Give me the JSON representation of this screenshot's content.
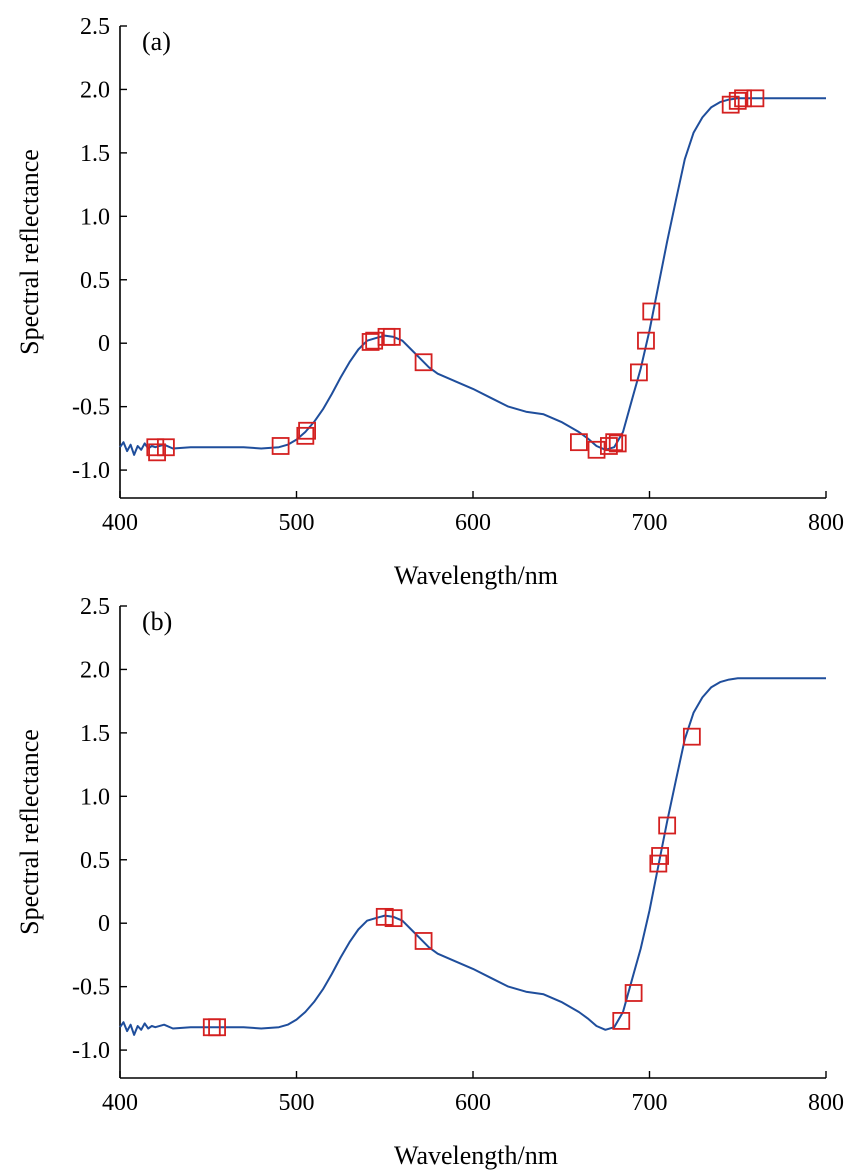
{
  "colors": {
    "line": "#1f4e9c",
    "marker": "#d42020",
    "axis": "#000000"
  },
  "chart_data": [
    {
      "type": "line",
      "panel_label": "(a)",
      "xlabel": "Wavelength/nm",
      "ylabel": "Spectral reflectance",
      "xlim": [
        400,
        800
      ],
      "ylim": [
        -1.22,
        2.5
      ],
      "xticks": [
        400,
        500,
        600,
        700,
        800
      ],
      "xtick_labels": [
        "400",
        "500",
        "600",
        "700",
        "800"
      ],
      "yticks": [
        -1.0,
        -0.5,
        0,
        0.5,
        1.0,
        1.5,
        2.0,
        2.5
      ],
      "ytick_labels": [
        "-1.0",
        "-0.5",
        "0",
        "0.5",
        "1.0",
        "1.5",
        "2.0",
        "2.5"
      ],
      "grid": false,
      "series": [
        {
          "x": [
            400,
            402,
            404,
            406,
            408,
            410,
            412,
            414,
            416,
            418,
            420,
            425,
            430,
            440,
            450,
            460,
            470,
            480,
            490,
            495,
            500,
            505,
            510,
            515,
            520,
            525,
            530,
            535,
            540,
            545,
            550,
            555,
            560,
            565,
            570,
            575,
            580,
            590,
            600,
            610,
            620,
            630,
            640,
            650,
            660,
            665,
            670,
            675,
            680,
            685,
            690,
            695,
            700,
            705,
            710,
            715,
            720,
            725,
            730,
            735,
            740,
            745,
            750,
            755,
            760,
            770,
            780,
            790,
            800
          ],
          "y": [
            -0.82,
            -0.78,
            -0.85,
            -0.8,
            -0.88,
            -0.81,
            -0.84,
            -0.79,
            -0.83,
            -0.81,
            -0.82,
            -0.8,
            -0.83,
            -0.82,
            -0.82,
            -0.82,
            -0.82,
            -0.83,
            -0.82,
            -0.8,
            -0.76,
            -0.7,
            -0.62,
            -0.52,
            -0.4,
            -0.27,
            -0.15,
            -0.05,
            0.02,
            0.04,
            0.06,
            0.05,
            0.02,
            -0.05,
            -0.12,
            -0.19,
            -0.24,
            -0.3,
            -0.36,
            -0.43,
            -0.5,
            -0.54,
            -0.56,
            -0.62,
            -0.7,
            -0.75,
            -0.81,
            -0.84,
            -0.82,
            -0.7,
            -0.45,
            -0.2,
            0.1,
            0.45,
            0.8,
            1.13,
            1.45,
            1.66,
            1.78,
            1.86,
            1.9,
            1.92,
            1.93,
            1.93,
            1.93,
            1.93,
            1.93,
            1.93,
            1.93
          ]
        }
      ],
      "markers": {
        "x": [
          420,
          421,
          426,
          491,
          505,
          506,
          542,
          544,
          551,
          554,
          572,
          660,
          670,
          677,
          680,
          682,
          694,
          698,
          701,
          746,
          750,
          753,
          760
        ],
        "y": [
          -0.82,
          -0.86,
          -0.82,
          -0.81,
          -0.73,
          -0.69,
          0.01,
          0.02,
          0.05,
          0.05,
          -0.15,
          -0.78,
          -0.84,
          -0.81,
          -0.78,
          -0.79,
          -0.23,
          0.02,
          0.25,
          1.88,
          1.91,
          1.93,
          1.93
        ]
      }
    },
    {
      "type": "line",
      "panel_label": "(b)",
      "xlabel": "Wavelength/nm",
      "ylabel": "Spectral reflectance",
      "xlim": [
        400,
        800
      ],
      "ylim": [
        -1.22,
        2.5
      ],
      "xticks": [
        400,
        500,
        600,
        700,
        800
      ],
      "xtick_labels": [
        "400",
        "500",
        "600",
        "700",
        "800"
      ],
      "yticks": [
        -1.0,
        -0.5,
        0,
        0.5,
        1.0,
        1.5,
        2.0,
        2.5
      ],
      "ytick_labels": [
        "-1.0",
        "-0.5",
        "0",
        "0.5",
        "1.0",
        "1.5",
        "2.0",
        "2.5"
      ],
      "grid": false,
      "series": [
        {
          "x": [
            400,
            402,
            404,
            406,
            408,
            410,
            412,
            414,
            416,
            418,
            420,
            425,
            430,
            440,
            450,
            460,
            470,
            480,
            490,
            495,
            500,
            505,
            510,
            515,
            520,
            525,
            530,
            535,
            540,
            545,
            550,
            555,
            560,
            565,
            570,
            575,
            580,
            590,
            600,
            610,
            620,
            630,
            640,
            650,
            660,
            665,
            670,
            675,
            680,
            685,
            690,
            695,
            700,
            705,
            710,
            715,
            720,
            725,
            730,
            735,
            740,
            745,
            750,
            755,
            760,
            770,
            780,
            790,
            800
          ],
          "y": [
            -0.82,
            -0.78,
            -0.85,
            -0.8,
            -0.88,
            -0.81,
            -0.84,
            -0.79,
            -0.83,
            -0.81,
            -0.82,
            -0.8,
            -0.83,
            -0.82,
            -0.82,
            -0.82,
            -0.82,
            -0.83,
            -0.82,
            -0.8,
            -0.76,
            -0.7,
            -0.62,
            -0.52,
            -0.4,
            -0.27,
            -0.15,
            -0.05,
            0.02,
            0.04,
            0.06,
            0.05,
            0.02,
            -0.05,
            -0.12,
            -0.19,
            -0.24,
            -0.3,
            -0.36,
            -0.43,
            -0.5,
            -0.54,
            -0.56,
            -0.62,
            -0.7,
            -0.75,
            -0.81,
            -0.84,
            -0.82,
            -0.7,
            -0.45,
            -0.2,
            0.1,
            0.45,
            0.8,
            1.13,
            1.45,
            1.66,
            1.78,
            1.86,
            1.9,
            1.92,
            1.93,
            1.93,
            1.93,
            1.93,
            1.93,
            1.93,
            1.93
          ]
        }
      ],
      "markers": {
        "x": [
          452,
          455,
          550,
          555,
          572,
          684,
          691,
          705,
          706,
          710,
          724
        ],
        "y": [
          -0.82,
          -0.82,
          0.05,
          0.04,
          -0.14,
          -0.77,
          -0.55,
          0.47,
          0.53,
          0.77,
          1.47
        ]
      }
    }
  ]
}
